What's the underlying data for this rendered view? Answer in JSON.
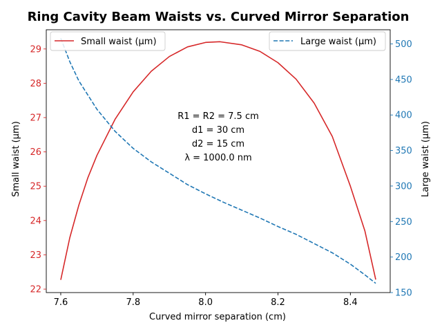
{
  "chart_data": {
    "type": "line",
    "title": "Ring Cavity Beam Waists vs. Curved Mirror Separation",
    "xlabel": "Curved mirror separation (cm)",
    "ylabel_left": "Small waist (μm)",
    "ylabel_right": "Large waist (μm)",
    "xlim": [
      7.56,
      8.51
    ],
    "ylim_left": [
      21.9,
      29.56
    ],
    "ylim_right": [
      150,
      520
    ],
    "x_ticks": [
      7.6,
      7.8,
      8.0,
      8.2,
      8.4
    ],
    "x_tick_labels": [
      "7.6",
      "7.8",
      "8.0",
      "8.2",
      "8.4"
    ],
    "y_left_ticks": [
      22,
      23,
      24,
      25,
      26,
      27,
      28,
      29
    ],
    "y_left_tick_labels": [
      "22",
      "23",
      "24",
      "25",
      "26",
      "27",
      "28",
      "29"
    ],
    "y_right_ticks": [
      150,
      200,
      250,
      300,
      350,
      400,
      450,
      500
    ],
    "y_right_tick_labels": [
      "150",
      "200",
      "250",
      "300",
      "350",
      "400",
      "450",
      "500"
    ],
    "left_axis_color": "#d62728",
    "right_axis_color": "#1f77b4",
    "grid": false,
    "series": [
      {
        "name": "Small waist (μm)",
        "axis": "left",
        "color": "#d62728",
        "style": "solid",
        "x": [
          7.6,
          7.625,
          7.65,
          7.675,
          7.7,
          7.75,
          7.8,
          7.85,
          7.9,
          7.95,
          8.0,
          8.04,
          8.1,
          8.15,
          8.2,
          8.25,
          8.3,
          8.35,
          8.4,
          8.44,
          8.47
        ],
        "values": [
          22.27,
          23.5,
          24.45,
          25.25,
          25.9,
          26.95,
          27.75,
          28.35,
          28.78,
          29.06,
          29.19,
          29.21,
          29.12,
          28.93,
          28.6,
          28.12,
          27.42,
          26.45,
          25.0,
          23.7,
          22.28
        ]
      },
      {
        "name": "Large waist (μm)",
        "axis": "right",
        "color": "#1f77b4",
        "style": "dashed",
        "x": [
          7.6,
          7.625,
          7.65,
          7.7,
          7.75,
          7.8,
          7.85,
          7.9,
          7.95,
          8.0,
          8.05,
          8.1,
          8.15,
          8.2,
          8.25,
          8.3,
          8.35,
          8.4,
          8.44,
          8.47
        ],
        "values": [
          508,
          475,
          448,
          408,
          377,
          353,
          334,
          318,
          302,
          289,
          277,
          266,
          255,
          243,
          232,
          219,
          206,
          190,
          175,
          163
        ]
      }
    ],
    "legend_left": {
      "placement": "upper-left",
      "label": "Small waist (μm)"
    },
    "legend_right": {
      "placement": "upper-right",
      "label": "Large waist (μm)"
    },
    "annotation": [
      "R1 = R2 = 7.5 cm",
      "d1 = 30 cm",
      "d2 = 15 cm",
      "λ = 1000.0 nm"
    ]
  }
}
